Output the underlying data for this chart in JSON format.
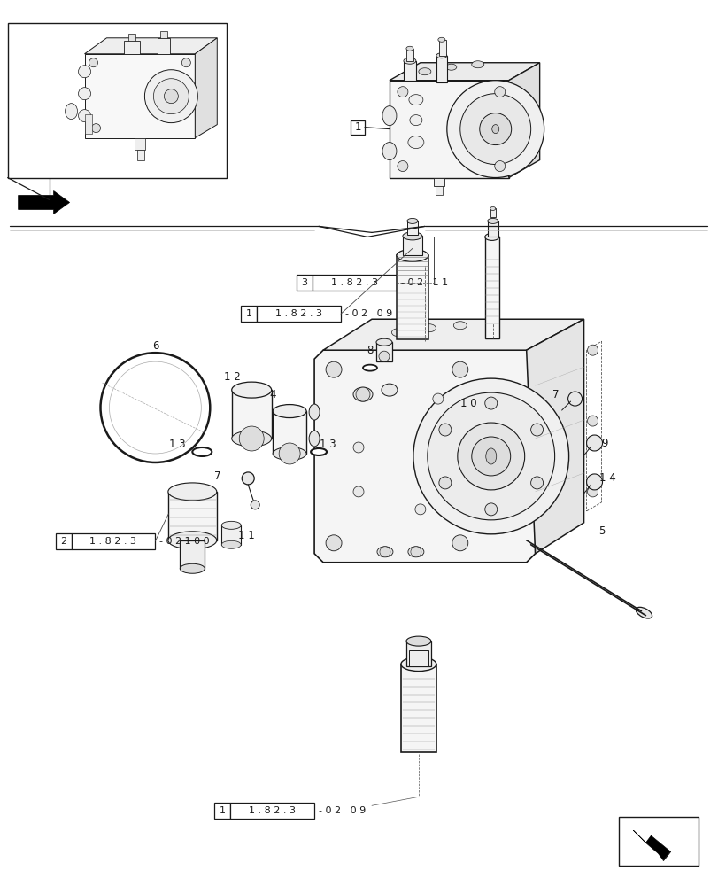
{
  "bg_color": "#ffffff",
  "lc": "#1a1a1a",
  "fig_width": 8.12,
  "fig_height": 10.0,
  "dpi": 100,
  "label_boxes": [
    {
      "num": "3",
      "text": "1 . 8 2 . 3",
      "suffix": "- 0 2   1 1",
      "bx": 0.415,
      "by": 0.673
    },
    {
      "num": "1",
      "text": "1 . 8 2 . 3",
      "suffix": "- 0 2   0 9",
      "bx": 0.345,
      "by": 0.638
    },
    {
      "num": "2",
      "text": "1 . 8 2 . 3",
      "suffix": "- 0 2 1 0 0",
      "bx": 0.095,
      "by": 0.368
    },
    {
      "num": "1",
      "text": "1 . 8 2 . 3",
      "suffix": "- 0 2   0 9",
      "bx": 0.31,
      "by": 0.072
    }
  ]
}
